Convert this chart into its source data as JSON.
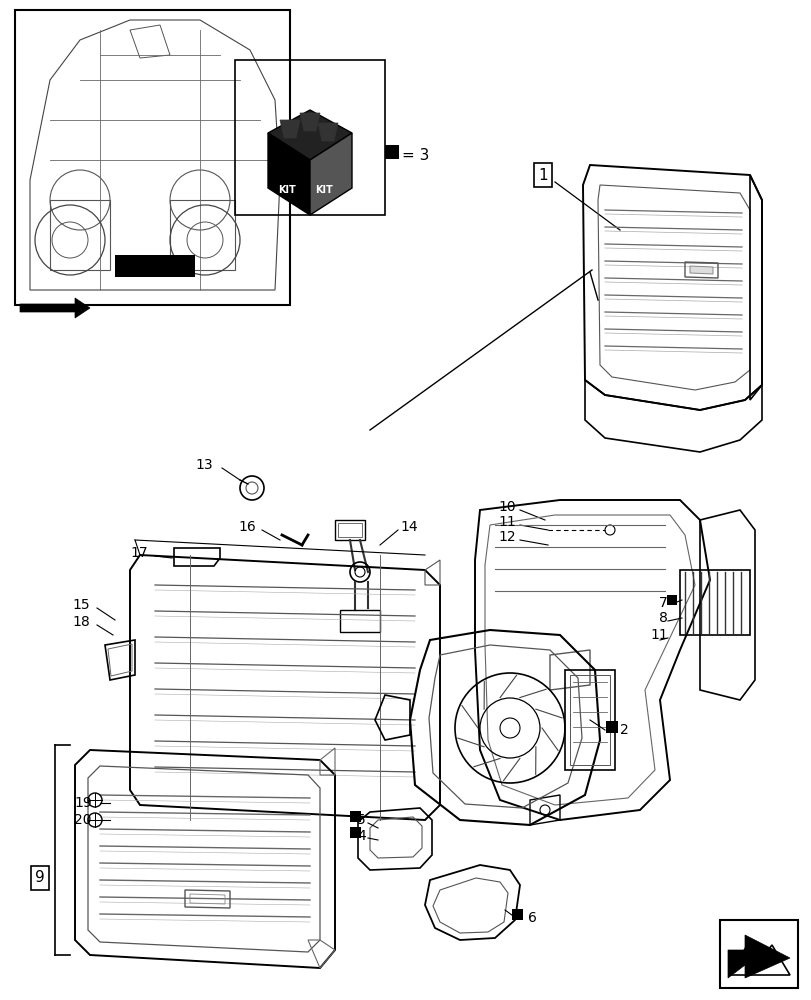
{
  "bg_color": "#ffffff",
  "fig_width": 8.12,
  "fig_height": 10.0,
  "dpi": 100,
  "gray": "#555555",
  "dgray": "#333333",
  "lgray": "#888888"
}
